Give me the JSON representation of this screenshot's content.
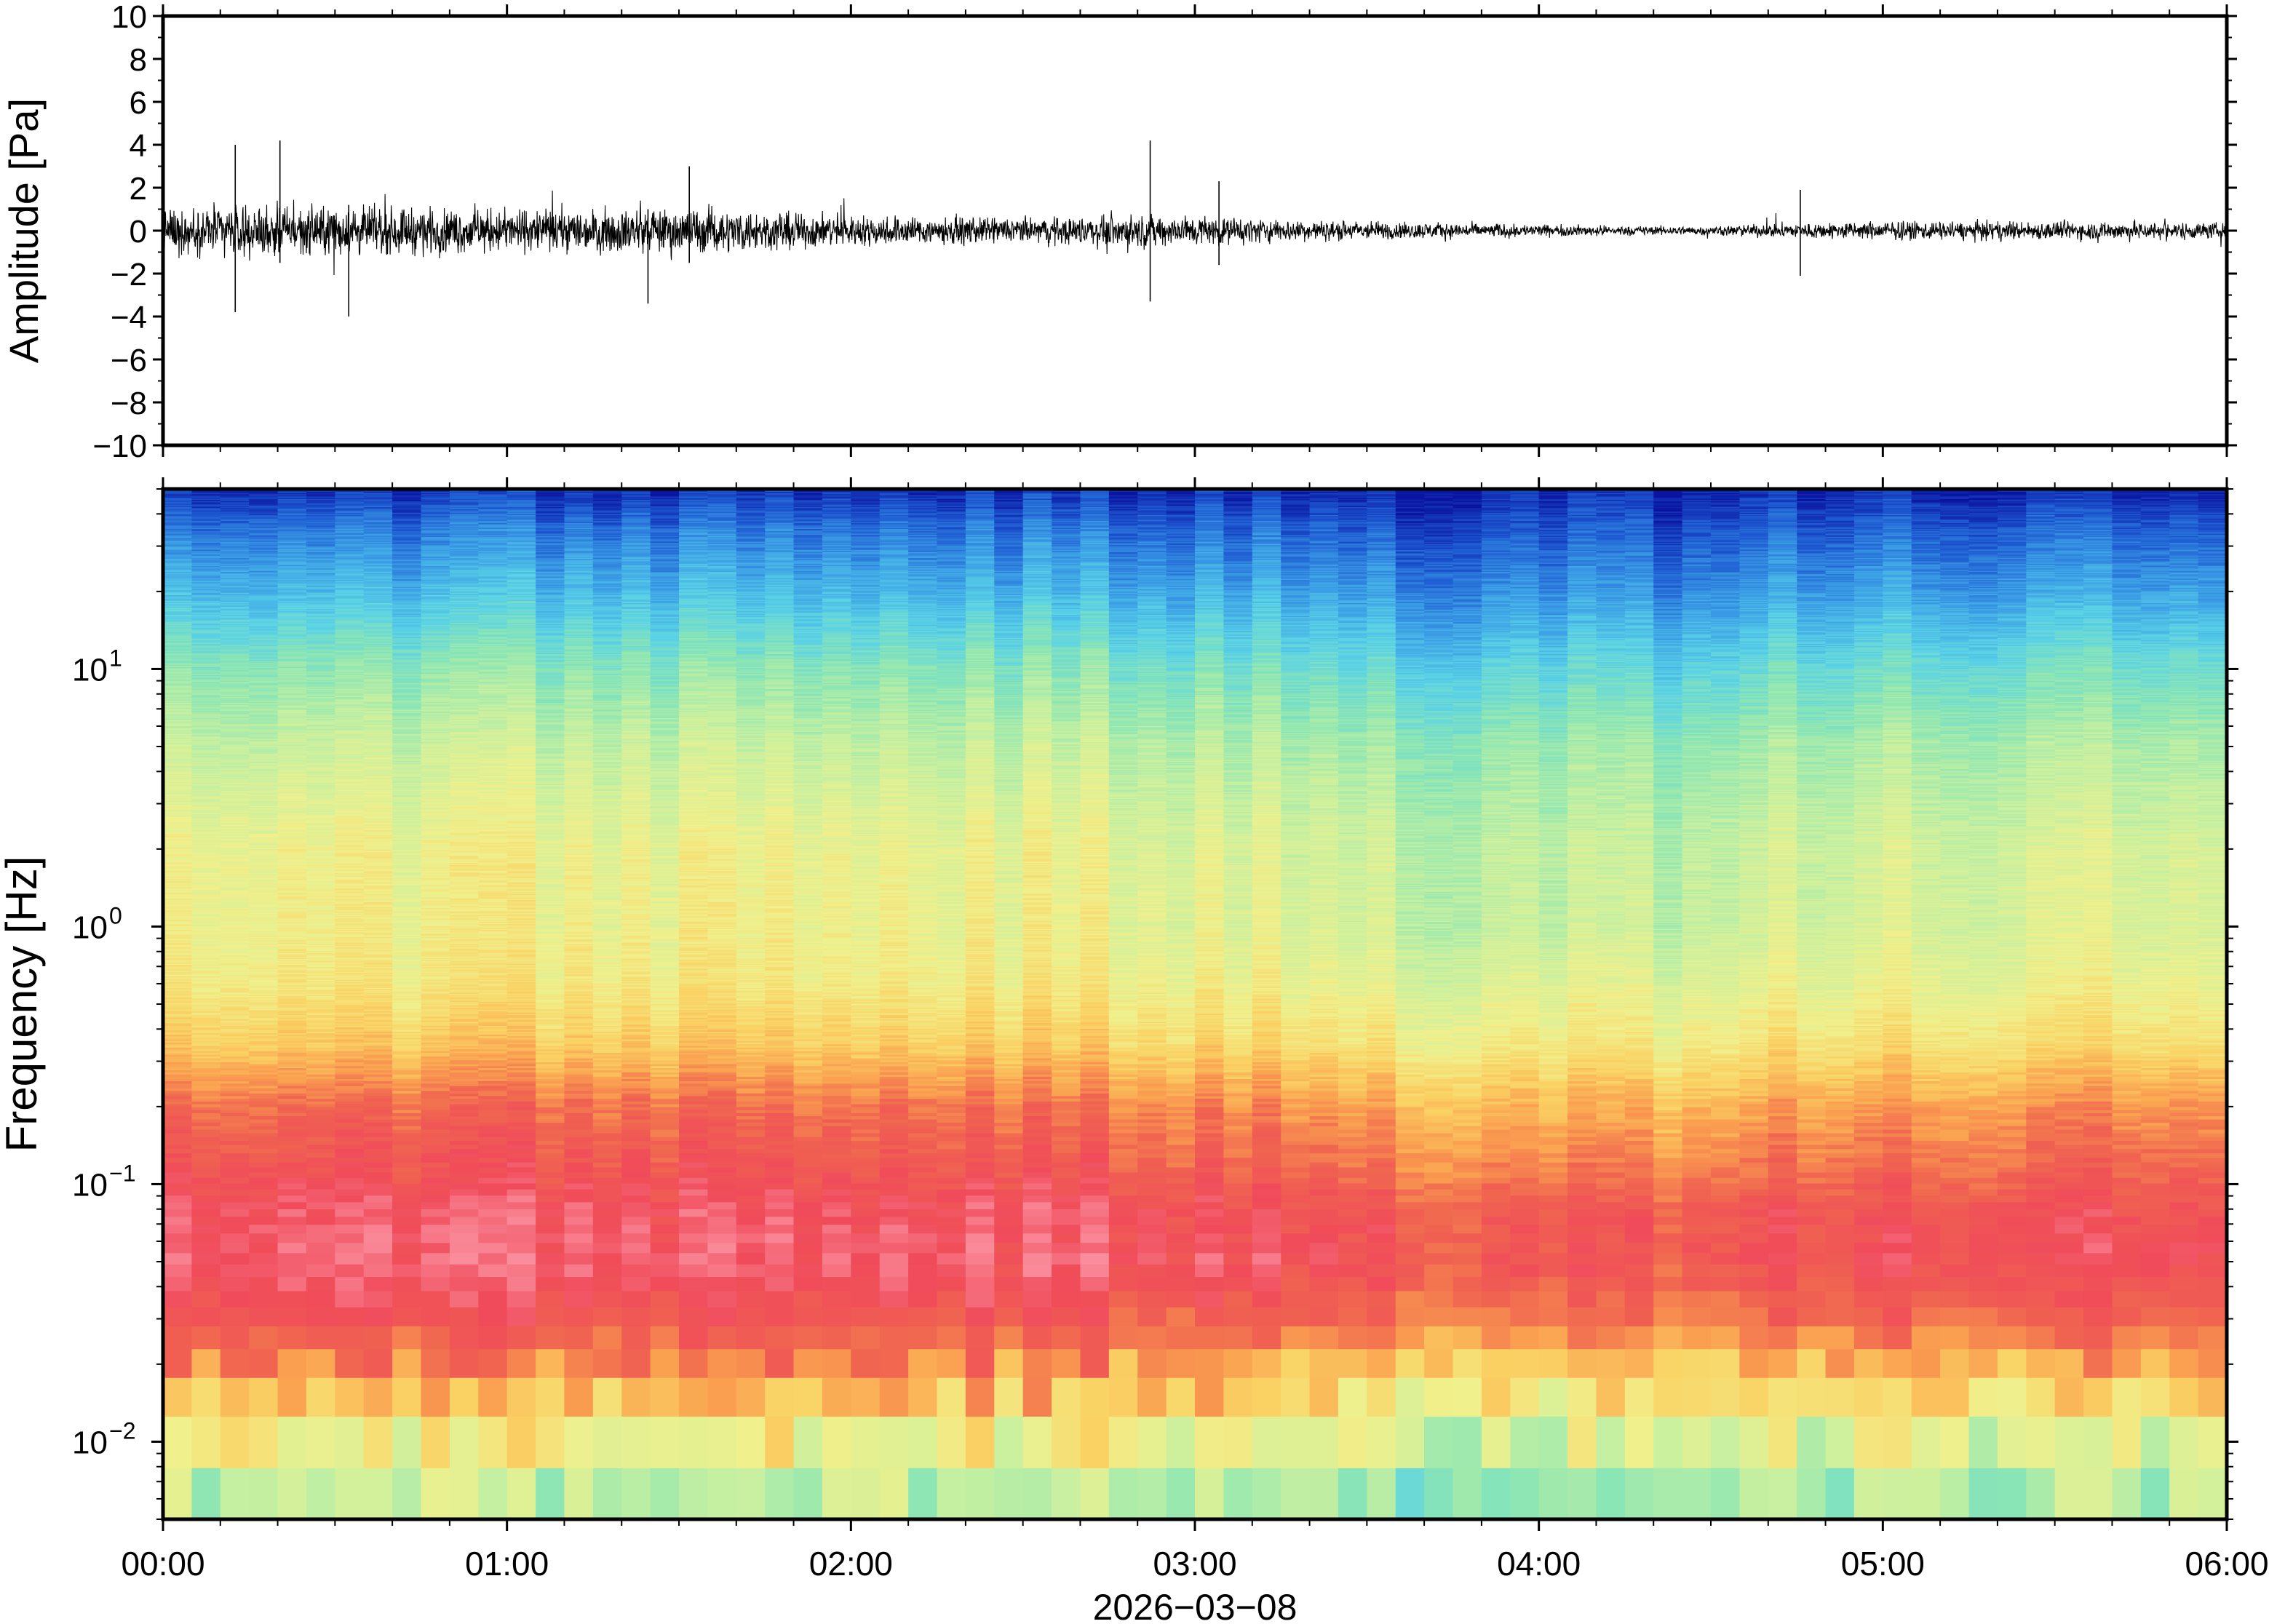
{
  "chart_data": [
    {
      "type": "line",
      "panel": "waveform",
      "title": "",
      "xlabel": "",
      "ylabel": "Amplitude [Pa]",
      "ylim": [
        -10,
        10
      ],
      "yticks": [
        "10",
        "8",
        "6",
        "4",
        "2",
        "0",
        "−2",
        "−4",
        "−6",
        "−8",
        "−10"
      ],
      "xlim_hours": [
        0,
        6
      ],
      "envelope": {
        "x_hours": [
          0.0,
          0.25,
          0.5,
          0.75,
          1.0,
          1.25,
          1.5,
          1.75,
          2.0,
          2.25,
          2.5,
          2.75,
          3.0,
          3.25,
          3.5,
          3.75,
          4.0,
          4.25,
          4.5,
          4.75,
          5.0,
          5.25,
          5.5,
          5.75,
          6.0
        ],
        "amplitude_pa": [
          1.5,
          1.6,
          1.6,
          1.5,
          1.4,
          1.4,
          1.5,
          1.3,
          1.0,
          0.9,
          0.8,
          1.0,
          1.0,
          0.7,
          0.6,
          0.5,
          0.4,
          0.3,
          0.3,
          0.5,
          0.6,
          0.6,
          0.6,
          0.6,
          0.5
        ]
      },
      "spikes": [
        {
          "x_hours": 0.21,
          "max": 4.0,
          "min": -3.8
        },
        {
          "x_hours": 0.34,
          "max": 4.2,
          "min": -1.5
        },
        {
          "x_hours": 0.54,
          "max": 1.2,
          "min": -4.0
        },
        {
          "x_hours": 1.41,
          "max": 1.0,
          "min": -3.4
        },
        {
          "x_hours": 1.53,
          "max": 3.0,
          "min": -1.5
        },
        {
          "x_hours": 2.87,
          "max": 4.2,
          "min": -3.3
        },
        {
          "x_hours": 3.07,
          "max": 2.3,
          "min": -1.6
        },
        {
          "x_hours": 4.76,
          "max": 1.9,
          "min": -2.1
        }
      ]
    },
    {
      "type": "heatmap",
      "panel": "spectrogram",
      "title": "",
      "xlabel": "2026−03−08",
      "ylabel": "Frequency [Hz]",
      "yscale": "log",
      "ylim_hz": [
        0.005,
        50
      ],
      "ytick_values": [
        0.01,
        0.1,
        1,
        10
      ],
      "ytick_labels": [
        {
          "base": "10",
          "exp": "−2"
        },
        {
          "base": "10",
          "exp": "−1"
        },
        {
          "base": "10",
          "exp": "0"
        },
        {
          "base": "10",
          "exp": "1"
        }
      ],
      "xticks": [
        "00:00",
        "01:00",
        "02:00",
        "03:00",
        "04:00",
        "05:00",
        "06:00"
      ],
      "xlim_hours": [
        0,
        6
      ],
      "colormap": [
        "#0a14a0",
        "#1e5ad2",
        "#3ca0e6",
        "#5ad2e6",
        "#8ce6b4",
        "#c8f0a0",
        "#f0f08c",
        "#fad264",
        "#faa050",
        "#f06450",
        "#f04b5a",
        "#fa8c9b"
      ],
      "level_profile": {
        "freq_hz": [
          0.005,
          0.008,
          0.012,
          0.02,
          0.03,
          0.05,
          0.08,
          0.12,
          0.2,
          0.35,
          0.6,
          1,
          2,
          5,
          10,
          20,
          35,
          50
        ],
        "early_hours_level": [
          0.42,
          0.5,
          0.62,
          0.78,
          0.88,
          0.96,
          0.94,
          0.88,
          0.82,
          0.66,
          0.58,
          0.56,
          0.55,
          0.47,
          0.38,
          0.24,
          0.14,
          0.04
        ],
        "late_hours_level": [
          0.38,
          0.42,
          0.52,
          0.66,
          0.78,
          0.86,
          0.84,
          0.76,
          0.68,
          0.56,
          0.5,
          0.45,
          0.44,
          0.38,
          0.28,
          0.16,
          0.08,
          0.02
        ]
      }
    }
  ]
}
